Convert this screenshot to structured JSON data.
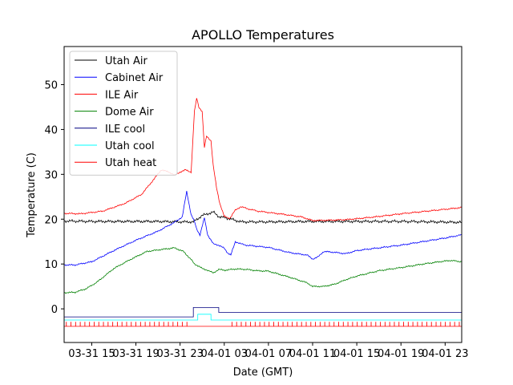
{
  "chart_data": {
    "type": "line",
    "title": "APOLLO Temperatures",
    "xlabel": "Date (GMT)",
    "ylabel": "Temperature (C)",
    "xlim": [
      12.5,
      48.5
    ],
    "ylim": [
      -7.5,
      58.5
    ],
    "x_ticks": [
      {
        "x": 15,
        "label": "03-31 15"
      },
      {
        "x": 19,
        "label": "03-31 19"
      },
      {
        "x": 23,
        "label": "03-31 23"
      },
      {
        "x": 27,
        "label": "04-01 03"
      },
      {
        "x": 31,
        "label": "04-01 07"
      },
      {
        "x": 35,
        "label": "04-01 11"
      },
      {
        "x": 39,
        "label": "04-01 15"
      },
      {
        "x": 43,
        "label": "04-01 19"
      },
      {
        "x": 47,
        "label": "04-01 23"
      }
    ],
    "y_ticks": [
      {
        "y": 0,
        "label": "0"
      },
      {
        "y": 10,
        "label": "10"
      },
      {
        "y": 20,
        "label": "20"
      },
      {
        "y": 30,
        "label": "30"
      },
      {
        "y": 40,
        "label": "40"
      },
      {
        "y": 50,
        "label": "50"
      }
    ],
    "legend_position": "top-left",
    "series": [
      {
        "name": "Utah Air",
        "color": "#000000",
        "x": [
          12.5,
          15,
          18,
          21,
          23,
          24.2,
          25,
          25.5,
          26,
          26.5,
          27.5,
          28.5,
          31,
          35,
          39,
          43,
          48.5
        ],
        "y": [
          19.6,
          19.5,
          19.5,
          19.5,
          19.4,
          19.4,
          20.8,
          21.2,
          21.6,
          20.6,
          20.1,
          19.4,
          19.4,
          19.5,
          19.5,
          19.5,
          19.3
        ]
      },
      {
        "name": "Cabinet Air",
        "color": "#0000ff",
        "x": [
          12.5,
          13.5,
          15,
          17,
          19,
          21,
          22.5,
          23.2,
          23.6,
          24.0,
          24.3,
          24.5,
          24.8,
          25.2,
          25.5,
          26,
          26.5,
          27,
          27.3,
          27.6,
          28,
          28.5,
          29,
          31,
          33,
          34.5,
          35,
          35.5,
          36,
          37,
          38,
          39,
          41,
          43,
          45,
          47,
          48.5
        ],
        "y": [
          9.8,
          9.8,
          10.5,
          13,
          15.3,
          17.3,
          19.3,
          20.5,
          26.2,
          21,
          19.5,
          17.8,
          16.5,
          20.3,
          16.5,
          14.5,
          14.2,
          13.5,
          12.5,
          12.0,
          15.0,
          14.5,
          14.2,
          13.7,
          12.5,
          12.0,
          11.1,
          11.6,
          12.8,
          12.6,
          12.3,
          13.0,
          13.6,
          14.2,
          15.0,
          15.8,
          16.5
        ]
      },
      {
        "name": "ILE Air",
        "color": "#ff0000",
        "x": [
          12.5,
          14,
          16,
          18,
          19.5,
          20.5,
          21.3,
          22,
          22.5,
          23,
          23.5,
          24,
          24.3,
          24.5,
          24.7,
          25.0,
          25.2,
          25.4,
          25.8,
          26.0,
          26.3,
          26.6,
          27,
          27.5,
          28,
          28.5,
          29,
          30,
          32,
          34,
          35,
          37,
          38,
          39,
          41,
          43,
          45,
          47,
          48.5
        ],
        "y": [
          21.3,
          21.2,
          21.8,
          23.5,
          25.5,
          28.5,
          31.0,
          30.5,
          29.8,
          30.5,
          31.0,
          30.5,
          44,
          47,
          45,
          44,
          36,
          38.5,
          37.5,
          32,
          27,
          23.5,
          20.6,
          20.2,
          22.0,
          22.8,
          22.4,
          21.8,
          21.2,
          20.5,
          19.7,
          19.8,
          19.9,
          20.1,
          20.6,
          21.2,
          21.7,
          22.2,
          22.6
        ]
      },
      {
        "name": "Dome Air",
        "color": "#008000",
        "x": [
          12.5,
          13.5,
          14.5,
          15.5,
          17,
          18.5,
          20,
          21.5,
          22.5,
          23.3,
          24.0,
          24.3,
          24.7,
          25.0,
          25.5,
          26,
          26.5,
          27,
          28,
          29,
          30,
          31,
          33,
          34.5,
          35,
          36,
          37,
          38,
          39,
          41,
          43,
          45,
          46.5,
          47.5,
          48.5
        ],
        "y": [
          3.6,
          3.7,
          4.5,
          6.0,
          9.0,
          11.0,
          12.8,
          13.3,
          13.6,
          12.8,
          11.0,
          10.0,
          9.5,
          9.0,
          8.6,
          8.0,
          8.8,
          8.6,
          8.9,
          8.8,
          8.5,
          8.4,
          7.0,
          5.8,
          5.0,
          5.0,
          5.5,
          6.5,
          7.3,
          8.5,
          9.2,
          10.0,
          10.5,
          10.8,
          10.5
        ]
      },
      {
        "name": "ILE cool",
        "color": "#000080",
        "x": [
          12.5,
          24.2,
          24.2,
          26.5,
          26.5,
          48.5
        ],
        "y": [
          -1.8,
          -1.8,
          0.3,
          0.3,
          -0.8,
          -0.8
        ]
      },
      {
        "name": "Utah cool",
        "color": "#00ffff",
        "x": [
          12.5,
          24.6,
          24.6,
          25.8,
          25.8,
          48.5
        ],
        "y": [
          -2.5,
          -2.5,
          -1.2,
          -1.2,
          -2.5,
          -2.5
        ]
      },
      {
        "name": "Utah heat",
        "color": "#ff0000",
        "x": [
          12.5,
          48.5
        ],
        "y": [
          -3.9,
          -3.9
        ]
      }
    ],
    "utah_heat_pulse_range": [
      -3.9,
      -2.9
    ]
  }
}
